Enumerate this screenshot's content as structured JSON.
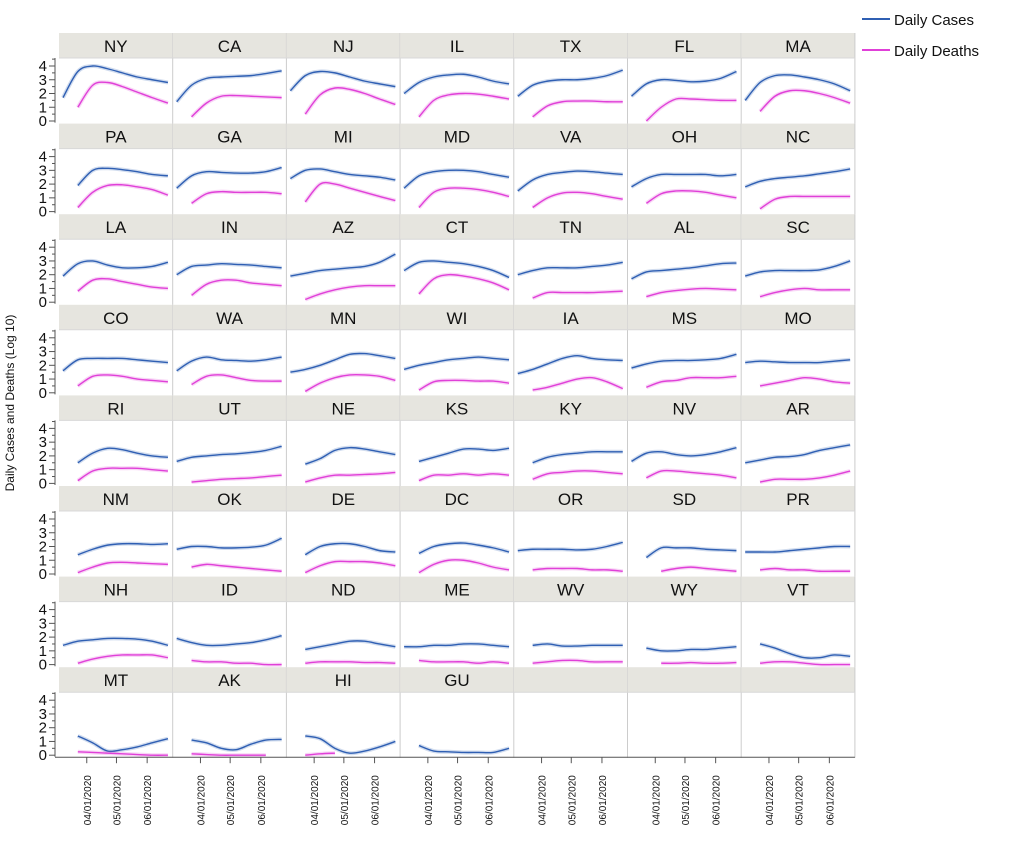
{
  "chart_data": {
    "type": "line",
    "layout": "small-multiples",
    "ylabel": "Daily Cases and Deaths (Log 10)",
    "ylim": [
      0,
      4.5
    ],
    "yticks": [
      "0",
      "1",
      "2",
      "3",
      "4"
    ],
    "xticks": [
      {
        "label": "04/01/2020",
        "day": 24
      },
      {
        "label": "05/01/2020",
        "day": 54
      },
      {
        "label": "06/01/2020",
        "day": 85
      }
    ],
    "x_days": [
      0,
      15,
      30,
      45,
      60,
      75,
      90,
      106
    ],
    "legend": {
      "position": "top-right",
      "entries": [
        {
          "name": "Daily Cases",
          "color": "#2f5fb3"
        },
        {
          "name": "Daily Deaths",
          "color": "#e040d8"
        }
      ]
    },
    "panels": [
      {
        "state": "NY",
        "cases": [
          1.7,
          3.6,
          4.0,
          3.8,
          3.5,
          3.2,
          3.0,
          2.8
        ],
        "deaths": [
          null,
          1.0,
          2.6,
          2.8,
          2.5,
          2.1,
          1.7,
          1.3
        ]
      },
      {
        "state": "CA",
        "cases": [
          1.4,
          2.6,
          3.1,
          3.2,
          3.25,
          3.3,
          3.45,
          3.65
        ],
        "deaths": [
          null,
          0.3,
          1.3,
          1.8,
          1.85,
          1.8,
          1.75,
          1.7
        ]
      },
      {
        "state": "NJ",
        "cases": [
          2.2,
          3.3,
          3.6,
          3.5,
          3.2,
          2.9,
          2.7,
          2.5
        ],
        "deaths": [
          null,
          0.5,
          1.9,
          2.4,
          2.3,
          2.0,
          1.6,
          1.2
        ]
      },
      {
        "state": "IL",
        "cases": [
          2.0,
          2.8,
          3.2,
          3.35,
          3.4,
          3.2,
          2.9,
          2.7
        ],
        "deaths": [
          null,
          0.3,
          1.5,
          1.9,
          2.0,
          1.95,
          1.8,
          1.6
        ]
      },
      {
        "state": "TX",
        "cases": [
          1.8,
          2.6,
          2.9,
          3.0,
          3.0,
          3.1,
          3.3,
          3.7
        ],
        "deaths": [
          null,
          0.3,
          1.1,
          1.4,
          1.45,
          1.45,
          1.4,
          1.4
        ]
      },
      {
        "state": "FL",
        "cases": [
          1.8,
          2.7,
          3.0,
          2.95,
          2.85,
          2.9,
          3.1,
          3.6
        ],
        "deaths": [
          null,
          0.0,
          1.0,
          1.6,
          1.6,
          1.55,
          1.5,
          1.5
        ]
      },
      {
        "state": "MA",
        "cases": [
          1.5,
          2.8,
          3.3,
          3.35,
          3.2,
          3.0,
          2.7,
          2.2
        ],
        "deaths": [
          null,
          0.7,
          1.8,
          2.2,
          2.2,
          2.0,
          1.7,
          1.3
        ]
      },
      {
        "state": "PA",
        "cases": [
          null,
          1.9,
          3.0,
          3.15,
          3.05,
          2.9,
          2.7,
          2.6
        ],
        "deaths": [
          null,
          0.3,
          1.4,
          1.9,
          1.95,
          1.8,
          1.6,
          1.2
        ]
      },
      {
        "state": "GA",
        "cases": [
          1.7,
          2.6,
          2.9,
          2.85,
          2.8,
          2.8,
          2.9,
          3.2
        ],
        "deaths": [
          null,
          0.6,
          1.3,
          1.45,
          1.4,
          1.4,
          1.4,
          1.3
        ]
      },
      {
        "state": "MI",
        "cases": [
          2.4,
          3.0,
          3.1,
          2.9,
          2.7,
          2.6,
          2.5,
          2.3
        ],
        "deaths": [
          null,
          0.7,
          2.0,
          2.0,
          1.7,
          1.4,
          1.1,
          0.8
        ]
      },
      {
        "state": "MD",
        "cases": [
          1.7,
          2.6,
          2.9,
          3.0,
          3.0,
          2.9,
          2.7,
          2.5
        ],
        "deaths": [
          null,
          0.3,
          1.4,
          1.7,
          1.7,
          1.6,
          1.4,
          1.1
        ]
      },
      {
        "state": "VA",
        "cases": [
          1.5,
          2.3,
          2.7,
          2.85,
          2.95,
          2.9,
          2.8,
          2.7
        ],
        "deaths": [
          null,
          0.3,
          1.0,
          1.35,
          1.4,
          1.3,
          1.1,
          0.9
        ]
      },
      {
        "state": "OH",
        "cases": [
          1.8,
          2.4,
          2.7,
          2.7,
          2.7,
          2.7,
          2.6,
          2.7
        ],
        "deaths": [
          null,
          0.6,
          1.3,
          1.5,
          1.5,
          1.4,
          1.2,
          1.0
        ]
      },
      {
        "state": "NC",
        "cases": [
          1.8,
          2.2,
          2.4,
          2.5,
          2.6,
          2.75,
          2.9,
          3.1
        ],
        "deaths": [
          null,
          0.2,
          0.9,
          1.1,
          1.1,
          1.1,
          1.1,
          1.1
        ]
      },
      {
        "state": "LA",
        "cases": [
          1.9,
          2.8,
          3.0,
          2.7,
          2.5,
          2.5,
          2.6,
          2.9
        ],
        "deaths": [
          null,
          0.8,
          1.6,
          1.7,
          1.5,
          1.3,
          1.1,
          1.0
        ]
      },
      {
        "state": "IN",
        "cases": [
          2.0,
          2.6,
          2.7,
          2.8,
          2.75,
          2.7,
          2.6,
          2.5
        ],
        "deaths": [
          null,
          0.5,
          1.3,
          1.6,
          1.6,
          1.4,
          1.3,
          1.2
        ]
      },
      {
        "state": "AZ",
        "cases": [
          1.9,
          2.1,
          2.3,
          2.4,
          2.5,
          2.6,
          2.9,
          3.5
        ],
        "deaths": [
          null,
          0.2,
          0.6,
          0.9,
          1.1,
          1.2,
          1.2,
          1.2
        ]
      },
      {
        "state": "CT",
        "cases": [
          2.3,
          2.9,
          3.0,
          2.9,
          2.8,
          2.6,
          2.3,
          1.8
        ],
        "deaths": [
          null,
          0.6,
          1.7,
          2.0,
          1.9,
          1.7,
          1.4,
          0.9
        ]
      },
      {
        "state": "TN",
        "cases": [
          2.0,
          2.3,
          2.5,
          2.5,
          2.5,
          2.6,
          2.7,
          2.9
        ],
        "deaths": [
          null,
          0.3,
          0.7,
          0.7,
          0.7,
          0.7,
          0.75,
          0.8
        ]
      },
      {
        "state": "AL",
        "cases": [
          1.7,
          2.2,
          2.3,
          2.4,
          2.5,
          2.65,
          2.8,
          2.85
        ],
        "deaths": [
          null,
          0.4,
          0.7,
          0.85,
          0.95,
          1.0,
          0.95,
          0.9
        ]
      },
      {
        "state": "SC",
        "cases": [
          1.9,
          2.2,
          2.3,
          2.3,
          2.3,
          2.35,
          2.6,
          3.0
        ],
        "deaths": [
          null,
          0.4,
          0.7,
          0.9,
          1.0,
          0.9,
          0.9,
          0.9
        ]
      },
      {
        "state": "CO",
        "cases": [
          1.6,
          2.4,
          2.5,
          2.5,
          2.5,
          2.4,
          2.3,
          2.2
        ],
        "deaths": [
          null,
          0.5,
          1.2,
          1.3,
          1.2,
          1.0,
          0.9,
          0.8
        ]
      },
      {
        "state": "WA",
        "cases": [
          1.6,
          2.3,
          2.6,
          2.4,
          2.35,
          2.3,
          2.4,
          2.6
        ],
        "deaths": [
          null,
          0.6,
          1.2,
          1.3,
          1.1,
          0.9,
          0.85,
          0.85
        ]
      },
      {
        "state": "MN",
        "cases": [
          1.5,
          1.7,
          2.0,
          2.4,
          2.8,
          2.85,
          2.7,
          2.5
        ],
        "deaths": [
          null,
          0.1,
          0.7,
          1.1,
          1.3,
          1.3,
          1.2,
          0.9
        ]
      },
      {
        "state": "WI",
        "cases": [
          1.7,
          2.0,
          2.2,
          2.4,
          2.5,
          2.6,
          2.5,
          2.4
        ],
        "deaths": [
          null,
          0.2,
          0.8,
          0.9,
          0.9,
          0.85,
          0.85,
          0.7
        ]
      },
      {
        "state": "IA",
        "cases": [
          1.4,
          1.7,
          2.1,
          2.5,
          2.7,
          2.5,
          2.4,
          2.35
        ],
        "deaths": [
          null,
          0.2,
          0.4,
          0.7,
          1.0,
          1.1,
          0.8,
          0.3
        ]
      },
      {
        "state": "MS",
        "cases": [
          1.8,
          2.1,
          2.3,
          2.35,
          2.35,
          2.4,
          2.5,
          2.8
        ],
        "deaths": [
          null,
          0.4,
          0.8,
          0.9,
          1.1,
          1.1,
          1.1,
          1.2
        ]
      },
      {
        "state": "MO",
        "cases": [
          2.2,
          2.3,
          2.25,
          2.2,
          2.2,
          2.2,
          2.3,
          2.4
        ],
        "deaths": [
          null,
          0.5,
          0.7,
          0.9,
          1.1,
          1.0,
          0.8,
          0.7
        ]
      },
      {
        "state": "RI",
        "cases": [
          null,
          1.5,
          2.2,
          2.55,
          2.45,
          2.2,
          2.0,
          1.9
        ],
        "deaths": [
          null,
          0.2,
          0.9,
          1.1,
          1.1,
          1.1,
          1.0,
          0.9
        ]
      },
      {
        "state": "UT",
        "cases": [
          1.6,
          1.9,
          2.0,
          2.1,
          2.15,
          2.25,
          2.4,
          2.7
        ],
        "deaths": [
          null,
          0.1,
          0.2,
          0.3,
          0.35,
          0.4,
          0.5,
          0.6
        ]
      },
      {
        "state": "NE",
        "cases": [
          null,
          1.4,
          1.8,
          2.4,
          2.6,
          2.5,
          2.3,
          2.1
        ],
        "deaths": [
          null,
          0.1,
          0.4,
          0.6,
          0.6,
          0.65,
          0.7,
          0.8
        ]
      },
      {
        "state": "KS",
        "cases": [
          null,
          1.6,
          1.9,
          2.2,
          2.5,
          2.5,
          2.4,
          2.55
        ],
        "deaths": [
          null,
          0.2,
          0.6,
          0.6,
          0.7,
          0.6,
          0.7,
          0.6
        ]
      },
      {
        "state": "KY",
        "cases": [
          null,
          1.5,
          1.9,
          2.1,
          2.2,
          2.3,
          2.3,
          2.3
        ],
        "deaths": [
          null,
          0.3,
          0.7,
          0.8,
          0.9,
          0.9,
          0.8,
          0.7
        ]
      },
      {
        "state": "NV",
        "cases": [
          1.6,
          2.2,
          2.3,
          2.1,
          2.0,
          2.1,
          2.3,
          2.6
        ],
        "deaths": [
          null,
          0.4,
          0.9,
          0.9,
          0.8,
          0.7,
          0.6,
          0.4
        ]
      },
      {
        "state": "AR",
        "cases": [
          1.5,
          1.7,
          1.9,
          1.95,
          2.1,
          2.4,
          2.6,
          2.8
        ],
        "deaths": [
          null,
          0.1,
          0.3,
          0.3,
          0.3,
          0.4,
          0.6,
          0.9
        ]
      },
      {
        "state": "NM",
        "cases": [
          null,
          1.4,
          1.8,
          2.1,
          2.2,
          2.2,
          2.15,
          2.2
        ],
        "deaths": [
          null,
          0.1,
          0.5,
          0.8,
          0.85,
          0.8,
          0.75,
          0.7
        ]
      },
      {
        "state": "OK",
        "cases": [
          1.8,
          2.0,
          2.0,
          1.9,
          1.9,
          1.95,
          2.1,
          2.6
        ],
        "deaths": [
          null,
          0.5,
          0.7,
          0.6,
          0.5,
          0.4,
          0.3,
          0.2
        ]
      },
      {
        "state": "DE",
        "cases": [
          null,
          1.4,
          2.0,
          2.2,
          2.2,
          2.0,
          1.7,
          1.6
        ],
        "deaths": [
          null,
          0.1,
          0.6,
          0.9,
          0.9,
          0.9,
          0.8,
          0.6
        ]
      },
      {
        "state": "DC",
        "cases": [
          null,
          1.5,
          2.0,
          2.2,
          2.25,
          2.1,
          1.9,
          1.6
        ],
        "deaths": [
          null,
          0.1,
          0.7,
          1.0,
          1.0,
          0.8,
          0.5,
          0.3
        ]
      },
      {
        "state": "OR",
        "cases": [
          1.7,
          1.8,
          1.8,
          1.8,
          1.75,
          1.8,
          2.0,
          2.3
        ],
        "deaths": [
          null,
          0.3,
          0.4,
          0.4,
          0.4,
          0.3,
          0.3,
          0.2
        ]
      },
      {
        "state": "SD",
        "cases": [
          null,
          1.2,
          1.9,
          1.9,
          1.9,
          1.8,
          1.75,
          1.7
        ],
        "deaths": [
          null,
          null,
          0.2,
          0.4,
          0.5,
          0.4,
          0.3,
          0.2
        ]
      },
      {
        "state": "PR",
        "cases": [
          1.6,
          1.6,
          1.6,
          1.7,
          1.8,
          1.9,
          2.0,
          2.0
        ],
        "deaths": [
          null,
          0.3,
          0.4,
          0.3,
          0.3,
          0.2,
          0.2,
          0.2
        ]
      },
      {
        "state": "NH",
        "cases": [
          1.4,
          1.7,
          1.8,
          1.9,
          1.9,
          1.85,
          1.7,
          1.4
        ],
        "deaths": [
          null,
          0.1,
          0.4,
          0.6,
          0.7,
          0.7,
          0.7,
          0.5
        ]
      },
      {
        "state": "ID",
        "cases": [
          1.9,
          1.6,
          1.4,
          1.4,
          1.5,
          1.6,
          1.8,
          2.1
        ],
        "deaths": [
          null,
          0.3,
          0.2,
          0.2,
          0.1,
          0.1,
          0.0,
          0.0
        ]
      },
      {
        "state": "ND",
        "cases": [
          null,
          1.1,
          1.3,
          1.5,
          1.7,
          1.7,
          1.5,
          1.3
        ],
        "deaths": [
          null,
          0.1,
          0.2,
          0.2,
          0.2,
          0.15,
          0.15,
          0.1
        ]
      },
      {
        "state": "ME",
        "cases": [
          1.3,
          1.3,
          1.4,
          1.4,
          1.5,
          1.5,
          1.4,
          1.3
        ],
        "deaths": [
          null,
          0.3,
          0.2,
          0.2,
          0.2,
          0.1,
          0.2,
          0.1
        ]
      },
      {
        "state": "WV",
        "cases": [
          null,
          1.4,
          1.5,
          1.35,
          1.35,
          1.4,
          1.4,
          1.4
        ],
        "deaths": [
          null,
          0.1,
          0.2,
          0.3,
          0.3,
          0.2,
          0.2,
          0.2
        ]
      },
      {
        "state": "WY",
        "cases": [
          null,
          1.2,
          1.0,
          1.0,
          1.1,
          1.1,
          1.2,
          1.3
        ],
        "deaths": [
          null,
          null,
          0.1,
          0.1,
          0.15,
          0.1,
          0.1,
          0.15
        ]
      },
      {
        "state": "VT",
        "cases": [
          null,
          1.5,
          1.2,
          0.8,
          0.5,
          0.5,
          0.7,
          0.6
        ],
        "deaths": [
          null,
          0.1,
          0.2,
          0.2,
          0.1,
          0.0,
          0.0,
          0.0
        ]
      },
      {
        "state": "MT",
        "cases": [
          null,
          1.4,
          0.9,
          0.3,
          0.4,
          0.6,
          0.9,
          1.2
        ],
        "deaths": [
          null,
          0.25,
          0.2,
          0.15,
          0.1,
          0.05,
          0.0,
          0.0
        ]
      },
      {
        "state": "AK",
        "cases": [
          null,
          1.1,
          0.9,
          0.5,
          0.4,
          0.8,
          1.1,
          1.15
        ],
        "deaths": [
          null,
          0.1,
          0.05,
          0.0,
          0.0,
          0.0,
          0.0,
          null
        ]
      },
      {
        "state": "HI",
        "cases": [
          null,
          1.4,
          1.2,
          0.5,
          0.15,
          0.3,
          0.6,
          1.0
        ],
        "deaths": [
          null,
          0.0,
          0.1,
          0.15,
          null,
          null,
          null,
          null
        ]
      },
      {
        "state": "GU",
        "cases": [
          null,
          0.7,
          0.3,
          0.25,
          0.2,
          0.2,
          0.2,
          0.5
        ],
        "deaths": [
          null,
          null,
          null,
          null,
          null,
          null,
          null,
          null
        ]
      }
    ]
  }
}
